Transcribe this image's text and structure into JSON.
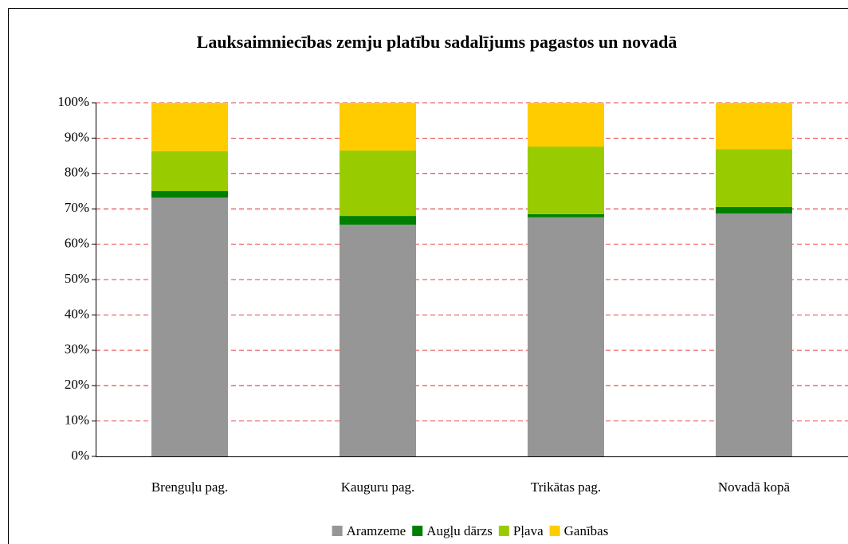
{
  "chart_data": {
    "type": "stacked_bar",
    "title": "Lauksaimniecības zemju platību sadalījums pagastos un novadā",
    "categories": [
      "Brenguļu pag.",
      "Kauguru pag.",
      "Trikātas pag.",
      "Novadā kopā"
    ],
    "series": [
      {
        "name": "Aramzeme",
        "color": "#969696",
        "values": [
          73.2,
          65.5,
          67.6,
          68.7
        ]
      },
      {
        "name": "Augļu dārzs",
        "color": "#008000",
        "values": [
          1.8,
          2.5,
          0.9,
          1.8
        ]
      },
      {
        "name": "Pļava",
        "color": "#99cc00",
        "values": [
          11.3,
          18.5,
          19.1,
          16.4
        ]
      },
      {
        "name": "Ganības",
        "color": "#ffcc00",
        "values": [
          13.7,
          13.5,
          12.4,
          13.1
        ]
      }
    ],
    "ylim": [
      0,
      100
    ],
    "yticks": [
      {
        "value": 0,
        "label": "0%"
      },
      {
        "value": 10,
        "label": "10%"
      },
      {
        "value": 20,
        "label": "20%"
      },
      {
        "value": 30,
        "label": "30%"
      },
      {
        "value": 40,
        "label": "40%"
      },
      {
        "value": 50,
        "label": "50%"
      },
      {
        "value": 60,
        "label": "60%"
      },
      {
        "value": 70,
        "label": "70%"
      },
      {
        "value": 80,
        "label": "80%"
      },
      {
        "value": 90,
        "label": "90%"
      },
      {
        "value": 100,
        "label": "100%"
      }
    ],
    "grid": true,
    "legend": "bottom"
  }
}
